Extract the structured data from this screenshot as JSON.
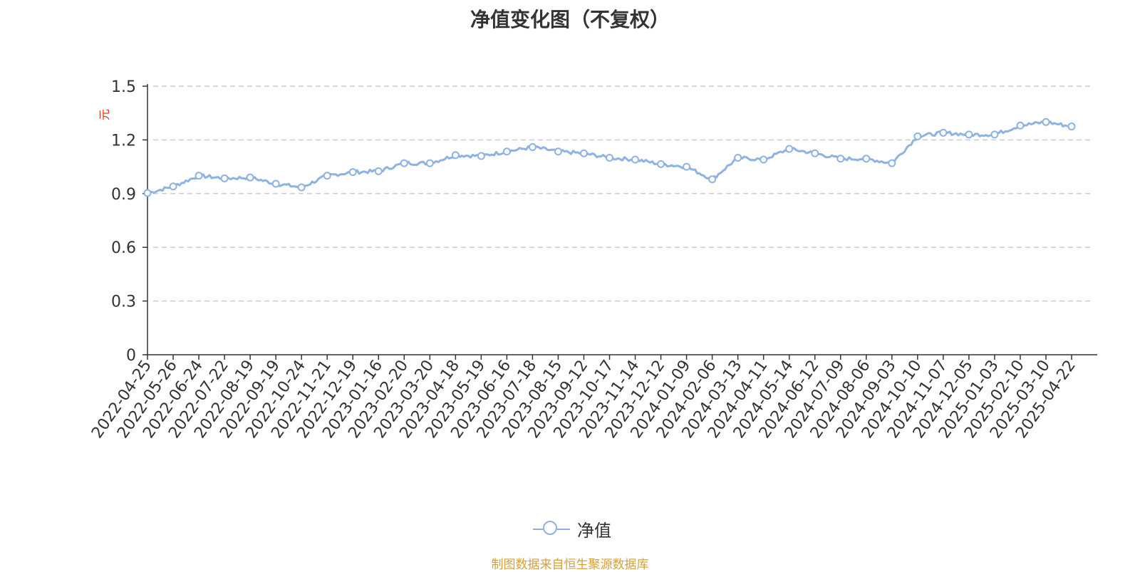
{
  "title": "净值变化图（不复权）",
  "source": "制图数据来自恒生聚源数据库",
  "legend": {
    "label": "净值",
    "color": "#8eb3e3"
  },
  "colors": {
    "line": "#8eb3e3",
    "axis": "#333333",
    "grid": "#cccccc",
    "ylabel": "#e0301e"
  },
  "chart_data": {
    "type": "line",
    "ylabel": "元",
    "xlabel": "",
    "ylim": [
      0,
      1.5
    ],
    "yticks": [
      "0",
      "0.3",
      "0.6",
      "0.9",
      "1.2",
      "1.5"
    ],
    "grid": true,
    "legend_position": "bottom-center",
    "categories": [
      "2022-04-25",
      "2022-05-26",
      "2022-06-24",
      "2022-07-22",
      "2022-08-19",
      "2022-09-19",
      "2022-10-24",
      "2022-11-21",
      "2022-12-19",
      "2023-01-16",
      "2023-02-20",
      "2023-03-20",
      "2023-04-18",
      "2023-05-19",
      "2023-06-16",
      "2023-07-18",
      "2023-08-15",
      "2023-09-12",
      "2023-10-17",
      "2023-11-14",
      "2023-12-12",
      "2024-01-09",
      "2024-02-06",
      "2024-03-13",
      "2024-04-11",
      "2024-05-14",
      "2024-06-12",
      "2024-07-09",
      "2024-08-06",
      "2024-09-03",
      "2024-10-10",
      "2024-11-07",
      "2024-12-05",
      "2025-01-03",
      "2025-02-10",
      "2025-03-10",
      "2025-04-22"
    ],
    "series": [
      {
        "name": "净值",
        "values": [
          0.903,
          0.94,
          1.0,
          0.985,
          0.99,
          0.955,
          0.935,
          1.0,
          1.02,
          1.025,
          1.07,
          1.07,
          1.115,
          1.11,
          1.135,
          1.16,
          1.135,
          1.125,
          1.1,
          1.09,
          1.065,
          1.05,
          0.98,
          1.1,
          1.09,
          1.15,
          1.125,
          1.095,
          1.095,
          1.07,
          1.22,
          1.24,
          1.23,
          1.23,
          1.28,
          1.3,
          1.275
        ]
      }
    ]
  }
}
